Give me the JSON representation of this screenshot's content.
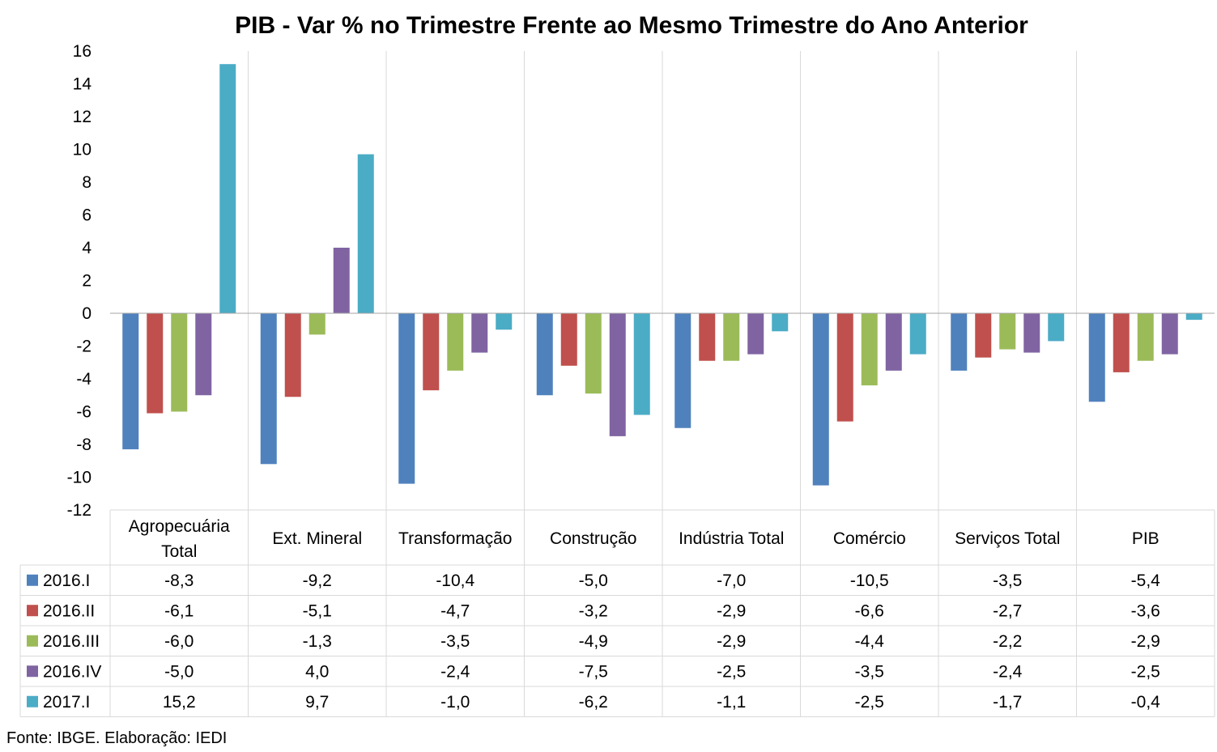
{
  "chart_data": {
    "type": "bar",
    "title": "PIB - Var % no Trimestre Frente ao Mesmo Trimestre do Ano Anterior",
    "categories": [
      [
        "Agropecuária",
        "Total"
      ],
      [
        "Ext. Mineral"
      ],
      [
        "Transformação"
      ],
      [
        "Construção"
      ],
      [
        "Indústria Total"
      ],
      [
        "Comércio"
      ],
      [
        "Serviços Total"
      ],
      [
        "PIB"
      ]
    ],
    "ylim": [
      -12,
      16
    ],
    "yticks": [
      16,
      14,
      12,
      10,
      8,
      6,
      4,
      2,
      0,
      -2,
      -4,
      -6,
      -8,
      -10,
      -12
    ],
    "grid": "vertical category separators",
    "legend": "data table below chart",
    "series": [
      {
        "name": "2016.I",
        "color": "#4F81BD",
        "values": [
          -8.3,
          -9.2,
          -10.4,
          -5.0,
          -7.0,
          -10.5,
          -3.5,
          -5.4
        ],
        "labels": [
          "-8,3",
          "-9,2",
          "-10,4",
          "-5,0",
          "-7,0",
          "-10,5",
          "-3,5",
          "-5,4"
        ]
      },
      {
        "name": "2016.II",
        "color": "#C0504D",
        "values": [
          -6.1,
          -5.1,
          -4.7,
          -3.2,
          -2.9,
          -6.6,
          -2.7,
          -3.6
        ],
        "labels": [
          "-6,1",
          "-5,1",
          "-4,7",
          "-3,2",
          "-2,9",
          "-6,6",
          "-2,7",
          "-3,6"
        ]
      },
      {
        "name": "2016.III",
        "color": "#9BBB59",
        "values": [
          -6.0,
          -1.3,
          -3.5,
          -4.9,
          -2.9,
          -4.4,
          -2.2,
          -2.9
        ],
        "labels": [
          "-6,0",
          "-1,3",
          "-3,5",
          "-4,9",
          "-2,9",
          "-4,4",
          "-2,2",
          "-2,9"
        ]
      },
      {
        "name": "2016.IV",
        "color": "#8064A2",
        "values": [
          -5.0,
          4.0,
          -2.4,
          -7.5,
          -2.5,
          -3.5,
          -2.4,
          -2.5
        ],
        "labels": [
          "-5,0",
          "4,0",
          "-2,4",
          "-7,5",
          "-2,5",
          "-3,5",
          "-2,4",
          "-2,5"
        ]
      },
      {
        "name": "2017.I",
        "color": "#4BACC6",
        "values": [
          15.2,
          9.7,
          -1.0,
          -6.2,
          -1.1,
          -2.5,
          -1.7,
          -0.4
        ],
        "labels": [
          "15,2",
          "9,7",
          "-1,0",
          "-6,2",
          "-1,1",
          "-2,5",
          "-1,7",
          "-0,4"
        ]
      }
    ],
    "source": "Fonte: IBGE. Elaboração: IEDI"
  }
}
